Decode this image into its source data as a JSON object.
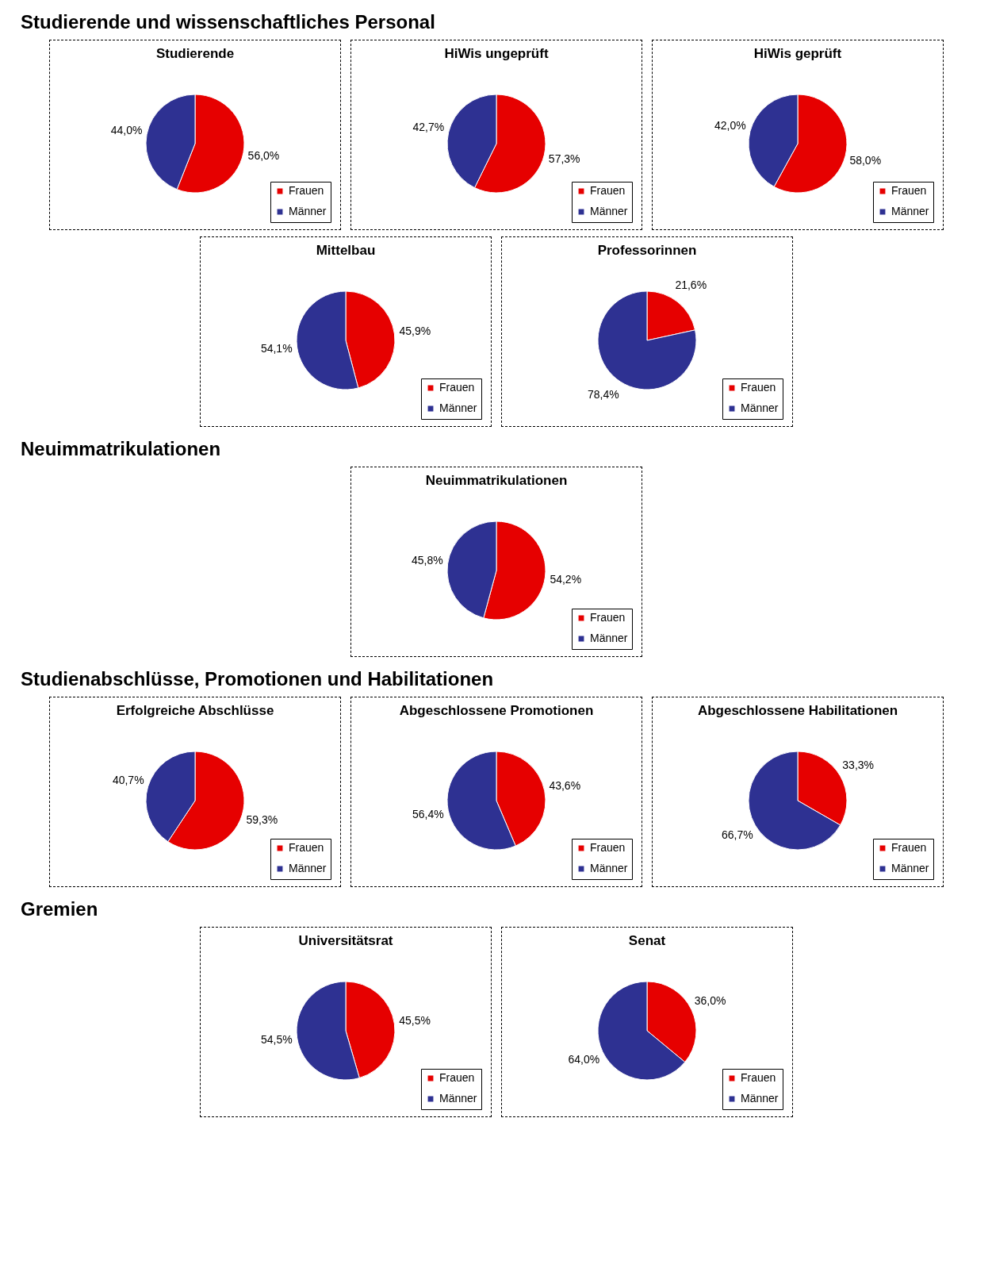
{
  "chart_data": [
    {
      "type": "pie",
      "title": "Studierende",
      "annotations": [
        "Studierende und wissenschaftliches Personal"
      ],
      "categories": [
        "Frauen",
        "Männer"
      ],
      "values": [
        56.0,
        44.0
      ],
      "value_labels": [
        "56,0%",
        "44,0%"
      ],
      "colors": [
        "#e60000",
        "#2e3192"
      ],
      "legend": "bottom right"
    },
    {
      "type": "pie",
      "title": "HiWis ungeprüft",
      "categories": [
        "Frauen",
        "Männer"
      ],
      "values": [
        57.3,
        42.7
      ],
      "value_labels": [
        "57,3%",
        "42,7%"
      ],
      "colors": [
        "#e60000",
        "#2e3192"
      ],
      "legend": "bottom right"
    },
    {
      "type": "pie",
      "title": "HiWis geprüft",
      "categories": [
        "Frauen",
        "Männer"
      ],
      "values": [
        58.0,
        42.0
      ],
      "value_labels": [
        "58,0%",
        "42,0%"
      ],
      "colors": [
        "#e60000",
        "#2e3192"
      ],
      "legend": "bottom right"
    },
    {
      "type": "pie",
      "title": "Mittelbau",
      "categories": [
        "Frauen",
        "Männer"
      ],
      "values": [
        45.9,
        54.1
      ],
      "value_labels": [
        "45,9%",
        "54,1%"
      ],
      "colors": [
        "#e60000",
        "#2e3192"
      ],
      "legend": "bottom right"
    },
    {
      "type": "pie",
      "title": "Professorinnen",
      "categories": [
        "Frauen",
        "Männer"
      ],
      "values": [
        21.6,
        78.4
      ],
      "value_labels": [
        "21,6%",
        "78,4%"
      ],
      "colors": [
        "#e60000",
        "#2e3192"
      ],
      "legend": "bottom right"
    },
    {
      "type": "pie",
      "title": "Neuimmatrikulationen",
      "annotations": [
        "Neuimmatrikulationen"
      ],
      "categories": [
        "Frauen",
        "Männer"
      ],
      "values": [
        54.2,
        45.8
      ],
      "value_labels": [
        "54,2%",
        "45,8%"
      ],
      "colors": [
        "#e60000",
        "#2e3192"
      ],
      "legend": "bottom right"
    },
    {
      "type": "pie",
      "title": "Erfolgreiche Abschlüsse",
      "annotations": [
        "Studienabschlüsse, Promotionen und Habilitationen"
      ],
      "categories": [
        "Frauen",
        "Männer"
      ],
      "values": [
        59.3,
        40.7
      ],
      "value_labels": [
        "59,3%",
        "40,7%"
      ],
      "colors": [
        "#e60000",
        "#2e3192"
      ],
      "legend": "bottom right"
    },
    {
      "type": "pie",
      "title": "Abgeschlossene Promotionen",
      "categories": [
        "Frauen",
        "Männer"
      ],
      "values": [
        43.6,
        56.4
      ],
      "value_labels": [
        "43,6%",
        "56,4%"
      ],
      "colors": [
        "#e60000",
        "#2e3192"
      ],
      "legend": "bottom right"
    },
    {
      "type": "pie",
      "title": "Abgeschlossene Habilitationen",
      "categories": [
        "Frauen",
        "Männer"
      ],
      "values": [
        33.3,
        66.7
      ],
      "value_labels": [
        "33,3%",
        "66,7%"
      ],
      "colors": [
        "#e60000",
        "#2e3192"
      ],
      "legend": "bottom right"
    },
    {
      "type": "pie",
      "title": "Universitätsrat",
      "annotations": [
        "Gremien"
      ],
      "categories": [
        "Frauen",
        "Männer"
      ],
      "values": [
        45.5,
        54.5
      ],
      "value_labels": [
        "45,5%",
        "54,5%"
      ],
      "colors": [
        "#e60000",
        "#2e3192"
      ],
      "legend": "bottom right"
    },
    {
      "type": "pie",
      "title": "Senat",
      "categories": [
        "Frauen",
        "Männer"
      ],
      "values": [
        36.0,
        64.0
      ],
      "value_labels": [
        "36,0%",
        "64,0%"
      ],
      "colors": [
        "#e60000",
        "#2e3192"
      ],
      "legend": "bottom right"
    }
  ]
}
